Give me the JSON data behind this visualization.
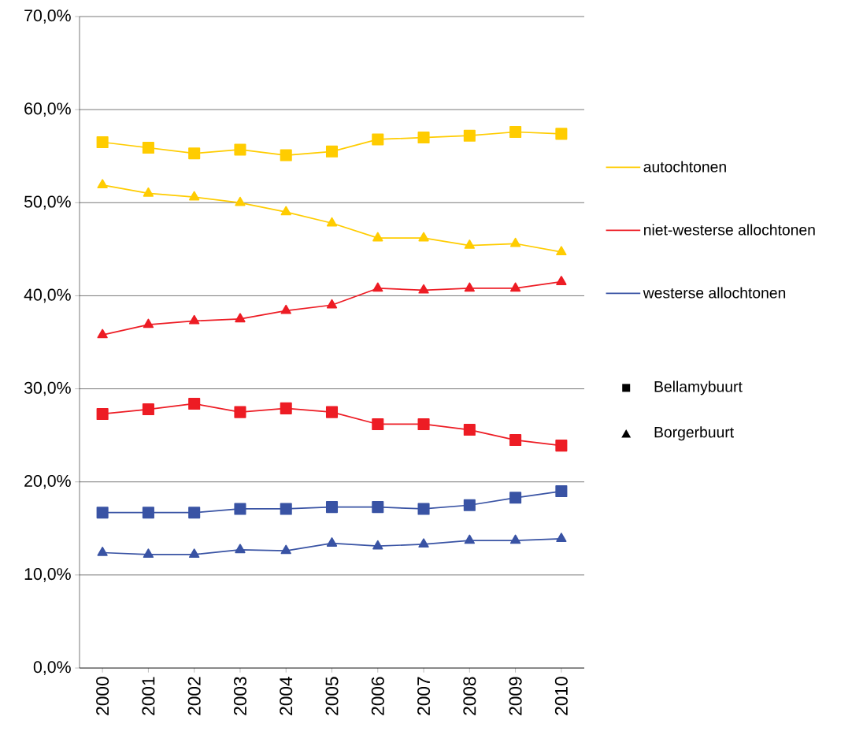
{
  "chart_data": {
    "type": "line",
    "categories": [
      "2000",
      "2001",
      "2002",
      "2003",
      "2004",
      "2005",
      "2006",
      "2007",
      "2008",
      "2009",
      "2010"
    ],
    "series": [
      {
        "name": "autochtonen",
        "color": "#ffcc00",
        "marker": "square",
        "values": [
          56.5,
          55.9,
          55.3,
          55.7,
          55.1,
          55.5,
          56.8,
          57.0,
          57.2,
          57.6,
          57.4
        ]
      },
      {
        "color": "#ffcc00",
        "marker": "triangle",
        "values": [
          51.9,
          51.0,
          50.6,
          50.0,
          49.0,
          47.8,
          46.2,
          46.2,
          45.4,
          45.6,
          44.7
        ]
      },
      {
        "name": "niet-westerse allochtonen",
        "color": "#ed1c24",
        "marker": "square",
        "values": [
          27.3,
          27.8,
          28.4,
          27.5,
          27.9,
          27.5,
          26.2,
          26.2,
          25.6,
          24.5,
          23.9
        ]
      },
      {
        "color": "#ed1c24",
        "marker": "triangle",
        "values": [
          35.8,
          36.9,
          37.3,
          37.5,
          38.4,
          39.0,
          40.8,
          40.6,
          40.8,
          40.8,
          41.5
        ]
      },
      {
        "name": "westerse allochtonen",
        "color": "#3953a4",
        "marker": "square",
        "values": [
          16.7,
          16.7,
          16.7,
          17.1,
          17.1,
          17.3,
          17.3,
          17.1,
          17.5,
          18.3,
          19.0
        ]
      },
      {
        "color": "#3953a4",
        "marker": "triangle",
        "values": [
          12.4,
          12.2,
          12.2,
          12.7,
          12.6,
          13.4,
          13.1,
          13.3,
          13.7,
          13.7,
          13.9
        ]
      }
    ],
    "annotations": [
      "Bellamybuurt",
      "Borgerbuurt"
    ],
    "ylim": [
      0,
      70
    ],
    "yticks": [
      {
        "value": 0,
        "label": "0,0%"
      },
      {
        "value": 10,
        "label": "10,0%"
      },
      {
        "value": 20,
        "label": "20,0%"
      },
      {
        "value": 30,
        "label": "30,0%"
      },
      {
        "value": 40,
        "label": "40,0%"
      },
      {
        "value": 50,
        "label": "50,0%"
      },
      {
        "value": 60,
        "label": "60,0%"
      },
      {
        "value": 70,
        "label": "70,0%"
      }
    ],
    "grid": "y",
    "legend": "right",
    "line_style": "solid"
  }
}
